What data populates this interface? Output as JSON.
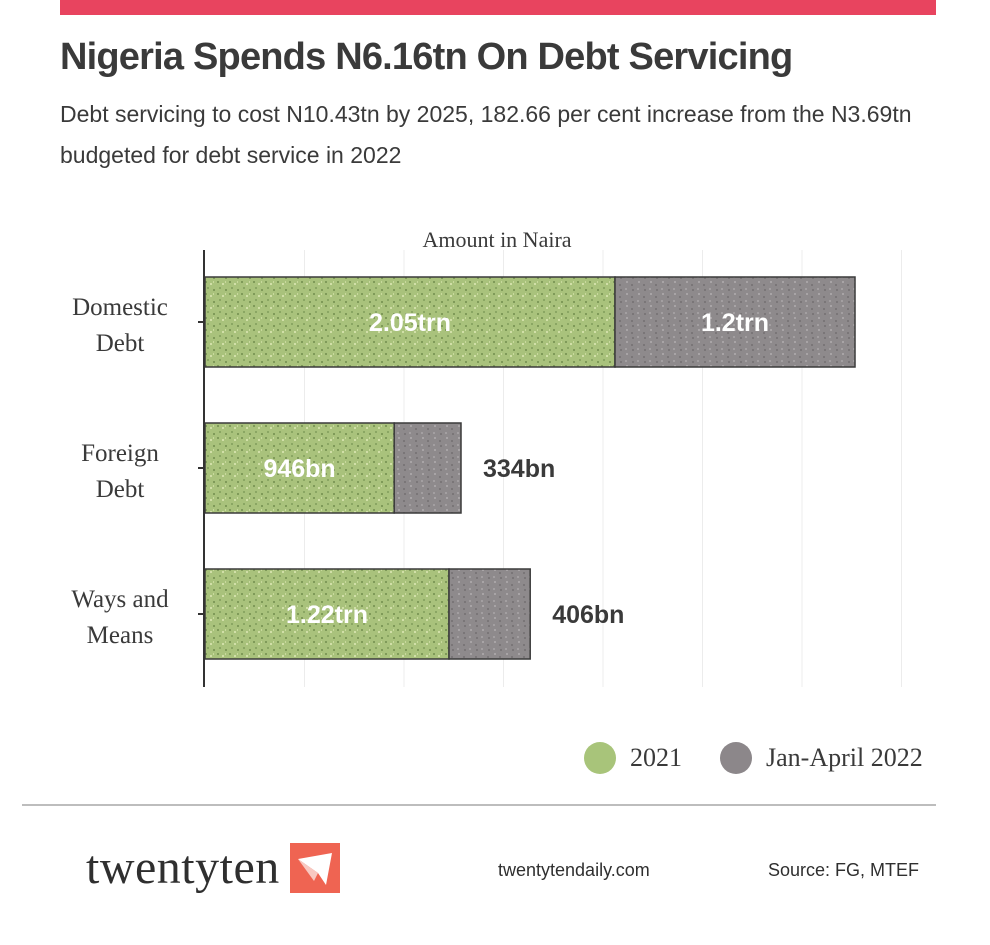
{
  "header": {
    "title": "Nigeria Spends N6.16tn On Debt Servicing",
    "subtitle": "Debt servicing to cost N10.43tn by 2025, 182.66 per cent increase from the N3.69tn budgeted for debt service in 2022",
    "accent_color": "#e8445f"
  },
  "chart_data": {
    "type": "bar",
    "orientation": "horizontal",
    "stacked": true,
    "xlabel": "Amount in Naira",
    "categories": [
      "Domestic Debt",
      "Foreign Debt",
      "Ways and Means"
    ],
    "category_lines": [
      [
        "Domestic",
        "Debt"
      ],
      [
        "Foreign",
        "Debt"
      ],
      [
        "Ways and",
        "Means"
      ]
    ],
    "series": [
      {
        "name": "2021",
        "values": [
          2.05,
          0.946,
          1.22
        ],
        "labels": [
          "2.05trn",
          "946bn",
          "1.22trn"
        ],
        "color": "#a9c27c",
        "dot_color": "#a8c47a"
      },
      {
        "name": "Jan-April 2022",
        "values": [
          1.2,
          0.334,
          0.406
        ],
        "labels": [
          "1.2trn",
          "334bn",
          "406bn"
        ],
        "color": "#8e8a8c",
        "dot_color": "#8c878a"
      }
    ],
    "unit": "trn",
    "xlim": [
      0,
      3.5
    ],
    "grid": true,
    "legend_position": "bottom-right"
  },
  "footer": {
    "brand": "twentyten",
    "brand_color": "#ef6452",
    "website": "twentytendaily.com",
    "source": "Source: FG, MTEF"
  }
}
